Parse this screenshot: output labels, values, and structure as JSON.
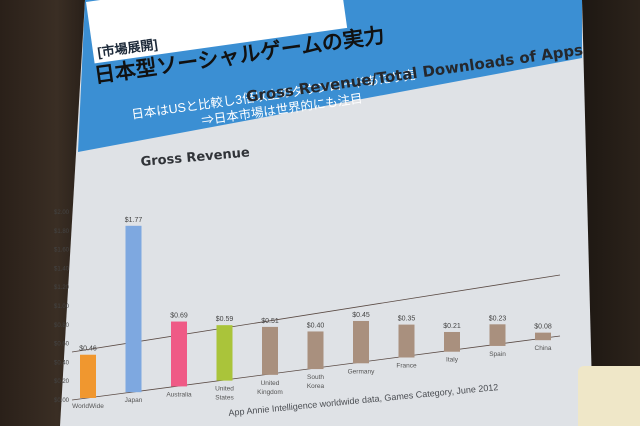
{
  "slide": {
    "market_tag": "[市場展開]",
    "headline": "日本型ソーシャルゲームの実力",
    "bullet_1": "日本はUSと比較し3倍以上のダウンロードあたり売",
    "bullet_2": "⇒日本市場は世界的にも注目",
    "chart_heading": "Gross Revenue/Total Downloads of Apps",
    "source": "App Annie Intelligence worldwide data, Games Category, June 2012"
  },
  "colors": {
    "header_band": "#3b8fd3",
    "screen": "#dfe2e6"
  },
  "chart_data": {
    "type": "bar",
    "title": "Gross Revenue",
    "categories": [
      "WorldWide",
      "Japan",
      "Australia",
      "United States",
      "United Kingdom",
      "South Korea",
      "Germany",
      "France",
      "Italy",
      "Spain",
      "China"
    ],
    "values": [
      0.46,
      1.77,
      0.69,
      0.59,
      0.51,
      0.4,
      0.45,
      0.35,
      0.21,
      0.23,
      0.08
    ],
    "value_labels": [
      "$0.46",
      "$1.77",
      "$0.69",
      "$0.59",
      "$0.51",
      "$0.40",
      "$0.45",
      "$0.35",
      "$0.21",
      "$0.23",
      "$0.08"
    ],
    "bar_colors": [
      "#f0972f",
      "#7ea8e0",
      "#ef5a86",
      "#aac43a",
      "#a9907e",
      "#a9907e",
      "#a9907e",
      "#a9907e",
      "#a9907e",
      "#a9907e",
      "#a9907e"
    ],
    "ylim": [
      0,
      2
    ],
    "y_ticks": [
      "$0.00",
      "$0.20",
      "$0.40",
      "$0.60",
      "$0.80",
      "$1.00",
      "$1.20",
      "$1.40",
      "$1.60",
      "$1.80",
      "$2.00"
    ],
    "grid": false,
    "legend": "none"
  }
}
